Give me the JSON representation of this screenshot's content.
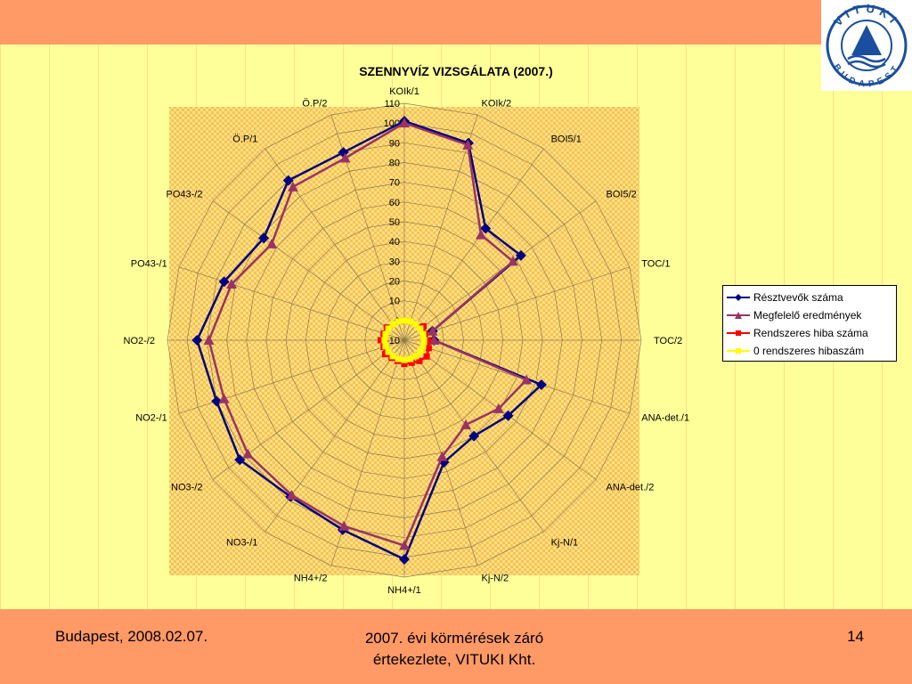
{
  "chart_data": {
    "type": "radar",
    "title": "SZENNYVÍZ VIZSGÁLATA (2007.)",
    "categories": [
      "KOIk/1",
      "KOIk/2",
      "BOI5/1",
      "BOI5/2",
      "TOC/1",
      "TOC/2",
      "ANA-det./1",
      "ANA-det./2",
      "Kj-N/1",
      "Kj-N/2",
      "NH4+/1",
      "NH4+/2",
      "NO3-/1",
      "NO3-/2",
      "NO2-/1",
      "NO2-/2",
      "PO43-/1",
      "PO43-/2",
      "Ö.P/1",
      "Ö.P/2"
    ],
    "rlim": [
      -10,
      110
    ],
    "rticks": [
      -10,
      0,
      10,
      20,
      30,
      40,
      50,
      60,
      70,
      80,
      90,
      100,
      110
    ],
    "grid": true,
    "legend_position": "right",
    "series": [
      {
        "name": "Résztvevők száma",
        "color": "#000080",
        "marker": "diamond",
        "values": [
          101,
          95,
          60,
          63,
          5,
          5,
          63,
          55,
          50,
          55,
          101,
          91,
          88,
          93,
          90,
          95,
          86,
          78,
          90,
          90
        ]
      },
      {
        "name": "Megfelelő eredmények",
        "color": "#993366",
        "marker": "triangle",
        "values": [
          100,
          94,
          56,
          58,
          5,
          5,
          55,
          49,
          43,
          52,
          94,
          89,
          87,
          88,
          86,
          89,
          82,
          73,
          86,
          87
        ]
      },
      {
        "name": "Rendszeres hiba száma",
        "color": "#ff0000",
        "marker": "square",
        "values": [
          0,
          0,
          0,
          2,
          1,
          2,
          3,
          4,
          3,
          2,
          2,
          1,
          1,
          2,
          1,
          2,
          1,
          1,
          0,
          0
        ]
      },
      {
        "name": "0 rendszeres hibaszám",
        "color": "#ffff00",
        "marker": "square",
        "values": [
          0,
          0,
          0,
          0,
          0,
          0,
          0,
          0,
          0,
          0,
          0,
          0,
          0,
          0,
          0,
          0,
          0,
          0,
          0,
          0
        ]
      }
    ]
  },
  "footer": {
    "left": "Budapest, 2008.02.07.",
    "center_line1": "2007. évi körmérések záró",
    "center_line2": "értekezlete, VITUKI Kht.",
    "page_number": "14"
  },
  "logo": {
    "text_top": "VITUKI",
    "text_bottom": "BUDAPEST"
  }
}
